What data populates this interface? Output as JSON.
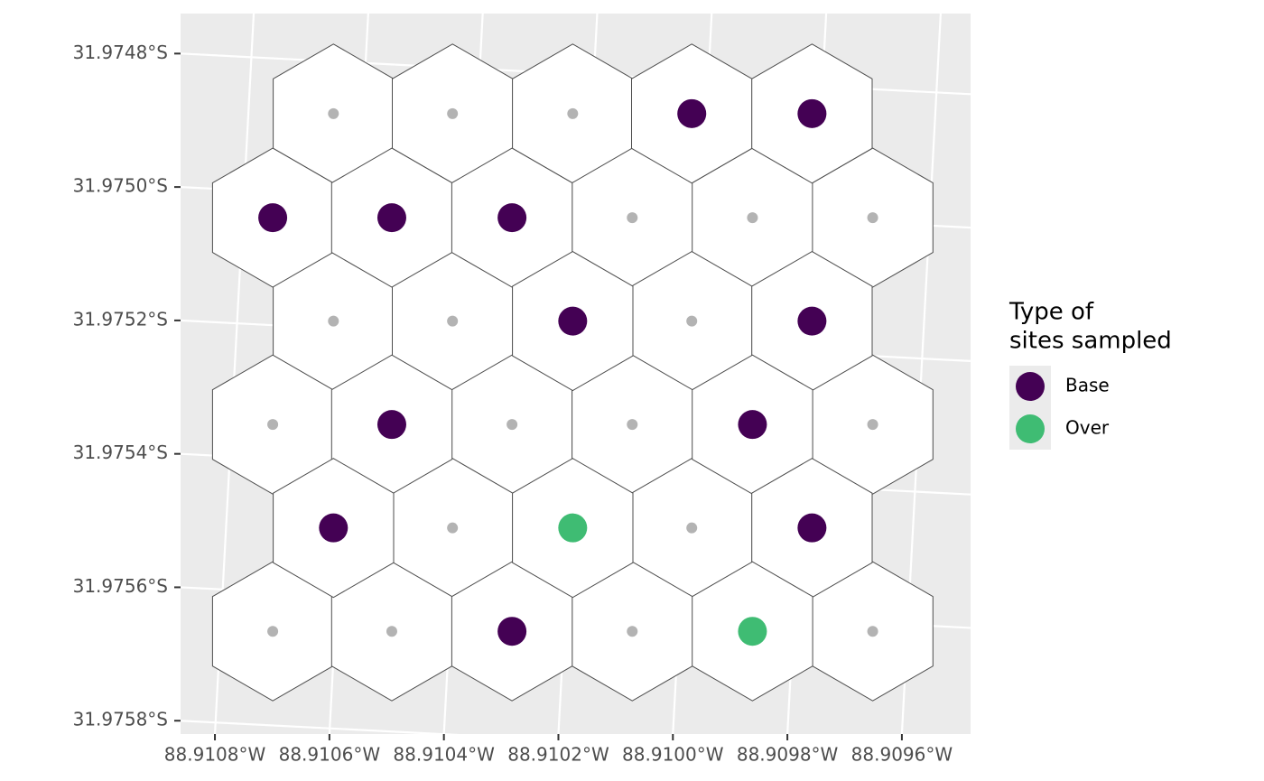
{
  "chart_data": {
    "type": "map",
    "xlim": [
      -88.91086,
      -88.90948
    ],
    "ylim": [
      -31.97582,
      -31.97474
    ],
    "xticks": [
      {
        "value": -88.9108,
        "label": "88.9108°W"
      },
      {
        "value": -88.9106,
        "label": "88.9106°W"
      },
      {
        "value": -88.9104,
        "label": "88.9104°W"
      },
      {
        "value": -88.9102,
        "label": "88.9102°W"
      },
      {
        "value": -88.91,
        "label": "88.9100°W"
      },
      {
        "value": -88.9098,
        "label": "88.9098°W"
      },
      {
        "value": -88.9096,
        "label": "88.9096°W"
      }
    ],
    "yticks": [
      {
        "value": -31.9748,
        "label": "31.9748°S"
      },
      {
        "value": -31.975,
        "label": "31.9750°S"
      },
      {
        "value": -31.9752,
        "label": "31.9752°S"
      },
      {
        "value": -31.9754,
        "label": "31.9754°S"
      },
      {
        "value": -31.9756,
        "label": "31.9756°S"
      },
      {
        "value": -31.9758,
        "label": "31.9758°S"
      }
    ],
    "grid": true,
    "legend_title": [
      "Type of",
      "sites sampled"
    ],
    "grid_points": {
      "color": "#b3b3b3",
      "x": [
        -88.910593,
        -88.910385,
        -88.910175,
        -88.910071,
        -88.909861,
        -88.909651,
        -88.910593,
        -88.910385,
        -88.909967,
        -88.910699,
        -88.910281,
        -88.910071,
        -88.909651,
        -88.910385,
        -88.909967,
        -88.910699,
        -88.910491,
        -88.910071,
        -88.909651
      ],
      "values": [
        -31.97489,
        -31.97489,
        -31.97489,
        -31.975046,
        -31.975046,
        -31.975046,
        -31.975201,
        -31.975201,
        -31.975201,
        -31.975356,
        -31.975356,
        -31.975356,
        -31.975356,
        -31.975511,
        -31.975511,
        -31.975666,
        -31.975666,
        -31.975666,
        -31.975666
      ]
    },
    "series": [
      {
        "name": "Base",
        "color": "#440154",
        "x": [
          -88.909967,
          -88.909757,
          -88.910699,
          -88.910491,
          -88.910281,
          -88.910175,
          -88.909757,
          -88.910491,
          -88.909861,
          -88.910593,
          -88.909757,
          -88.910281
        ],
        "values": [
          -31.97489,
          -31.97489,
          -31.975046,
          -31.975046,
          -31.975046,
          -31.975201,
          -31.975201,
          -31.975356,
          -31.975356,
          -31.975511,
          -31.975511,
          -31.975666
        ]
      },
      {
        "name": "Over",
        "color": "#3fbc73",
        "x": [
          -88.910175,
          -88.909861
        ],
        "values": [
          -31.975511,
          -31.975666
        ]
      }
    ]
  }
}
